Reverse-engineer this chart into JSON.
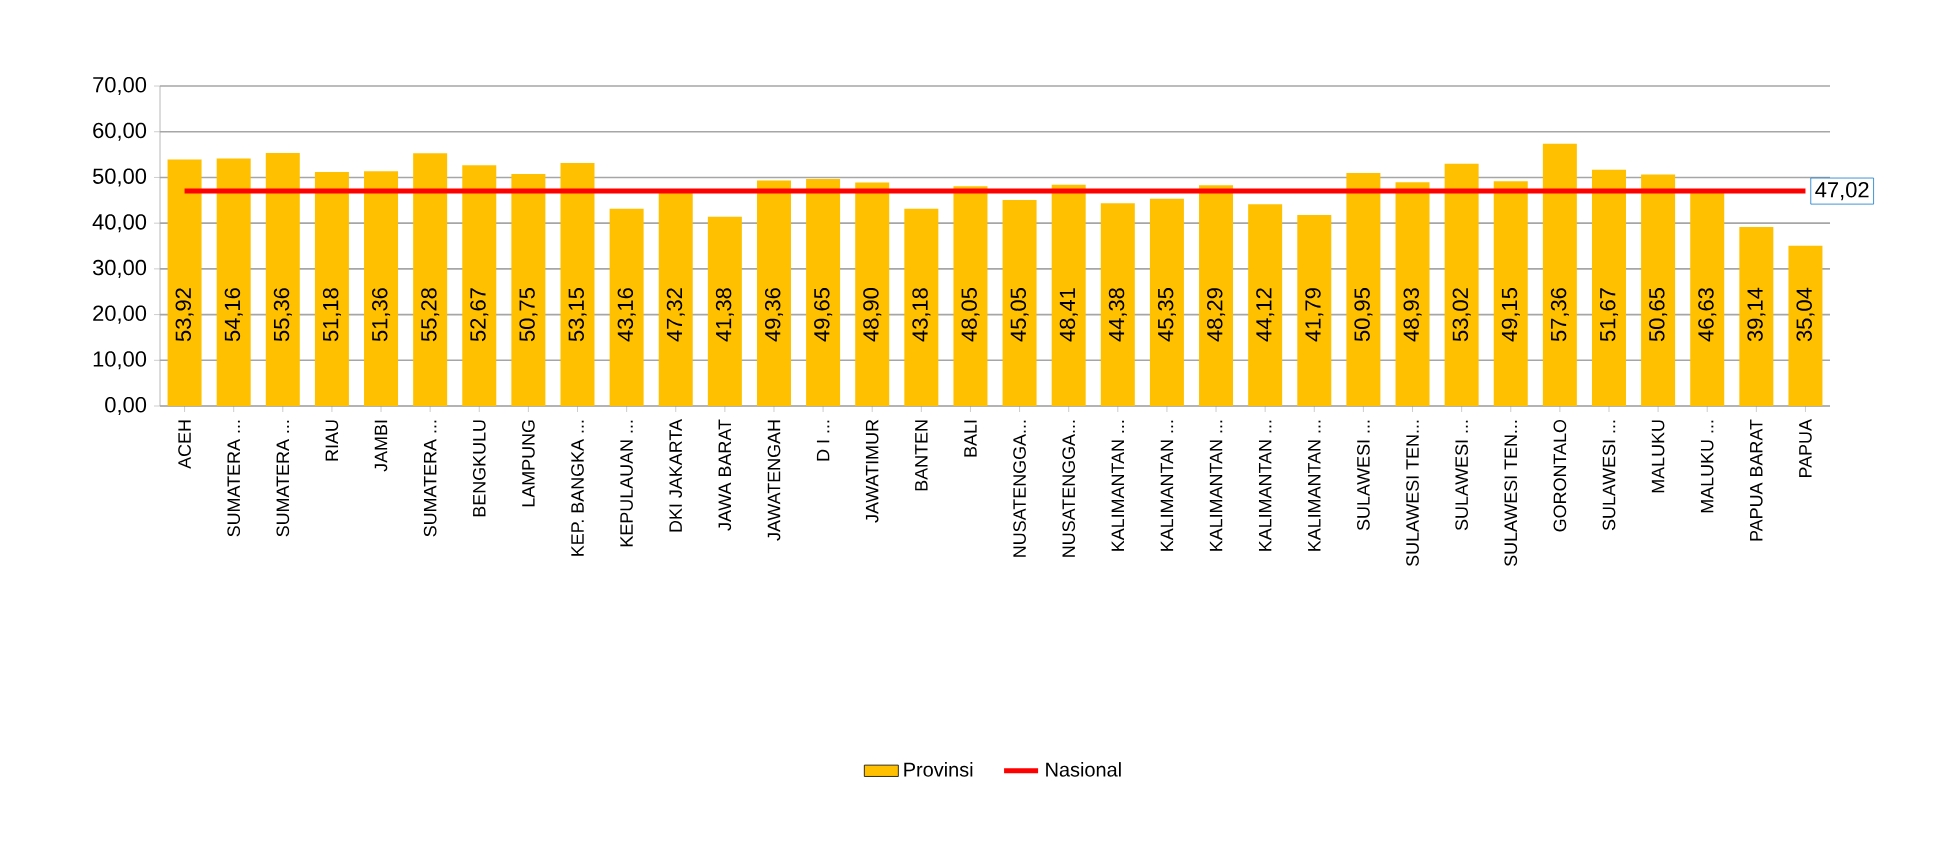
{
  "chart_data": {
    "type": "bar",
    "categories": [
      "ACEH",
      "SUMATERA ...",
      "SUMATERA ...",
      "RIAU",
      "JAMBI",
      "SUMATERA ...",
      "BENGKULU",
      "LAMPUNG",
      "KEP. BANGKA ...",
      "KEPULAUAN ...",
      "DKI JAKARTA",
      "JAWA BARAT",
      "JAWATENGAH",
      "D I ...",
      "JAWATIMUR",
      "BANTEN",
      "BALI",
      "NUSATENGGA...",
      "NUSATENGGA...",
      "KALIMANTAN ...",
      "KALIMANTAN ...",
      "KALIMANTAN ...",
      "KALIMANTAN ...",
      "KALIMANTAN ...",
      "SULAWESI ...",
      "SULAWESI TEN...",
      "SULAWESI ...",
      "SULAWESI TEN...",
      "GORONTALO",
      "SULAWESI ...",
      "MALUKU",
      "MALUKU ...",
      "PAPUA BARAT",
      "PAPUA"
    ],
    "series": [
      {
        "name": "Provinsi",
        "color": "#ffc000",
        "values": [
          53.92,
          54.16,
          55.36,
          51.18,
          51.36,
          55.28,
          52.67,
          50.75,
          53.15,
          43.16,
          47.32,
          41.38,
          49.36,
          49.65,
          48.9,
          43.18,
          48.05,
          45.05,
          48.41,
          44.38,
          45.35,
          48.29,
          44.12,
          41.79,
          50.95,
          48.93,
          53.02,
          49.15,
          57.36,
          51.67,
          50.65,
          46.63,
          39.14,
          35.04
        ],
        "value_labels": [
          "53,92",
          "54,16",
          "55,36",
          "51,18",
          "51,36",
          "55,28",
          "52,67",
          "50,75",
          "53,15",
          "43,16",
          "47,32",
          "41,38",
          "49,36",
          "49,65",
          "48,90",
          "43,18",
          "48,05",
          "45,05",
          "48,41",
          "44,38",
          "45,35",
          "48,29",
          "44,12",
          "41,79",
          "50,95",
          "48,93",
          "53,02",
          "49,15",
          "57,36",
          "51,67",
          "50,65",
          "46,63",
          "39,14",
          "35,04"
        ]
      },
      {
        "name": "Nasional",
        "type": "line",
        "color": "#ff0000",
        "values": [
          47.02,
          47.02,
          47.02,
          47.02,
          47.02,
          47.02,
          47.02,
          47.02,
          47.02,
          47.02,
          47.02,
          47.02,
          47.02,
          47.02,
          47.02,
          47.02,
          47.02,
          47.02,
          47.02,
          47.02,
          47.02,
          47.02,
          47.02,
          47.02,
          47.02,
          47.02,
          47.02,
          47.02,
          47.02,
          47.02,
          47.02,
          47.02,
          47.02,
          47.02
        ],
        "value_labels": [
          null,
          null,
          null,
          null,
          null,
          null,
          null,
          null,
          null,
          null,
          null,
          null,
          null,
          null,
          null,
          null,
          null,
          null,
          null,
          null,
          null,
          null,
          null,
          null,
          null,
          null,
          null,
          null,
          null,
          null,
          null,
          null,
          null,
          "47,02"
        ]
      }
    ],
    "ylim": [
      0,
      70
    ],
    "yticks": [
      {
        "value": 0,
        "label": "0,00"
      },
      {
        "value": 10,
        "label": "10,00"
      },
      {
        "value": 20,
        "label": "20,00"
      },
      {
        "value": 30,
        "label": "30,00"
      },
      {
        "value": 40,
        "label": "40,00"
      },
      {
        "value": 50,
        "label": "50,00"
      },
      {
        "value": 60,
        "label": "60,00"
      },
      {
        "value": 70,
        "label": "70,00"
      }
    ],
    "grid": "y",
    "legend": "bottom"
  }
}
